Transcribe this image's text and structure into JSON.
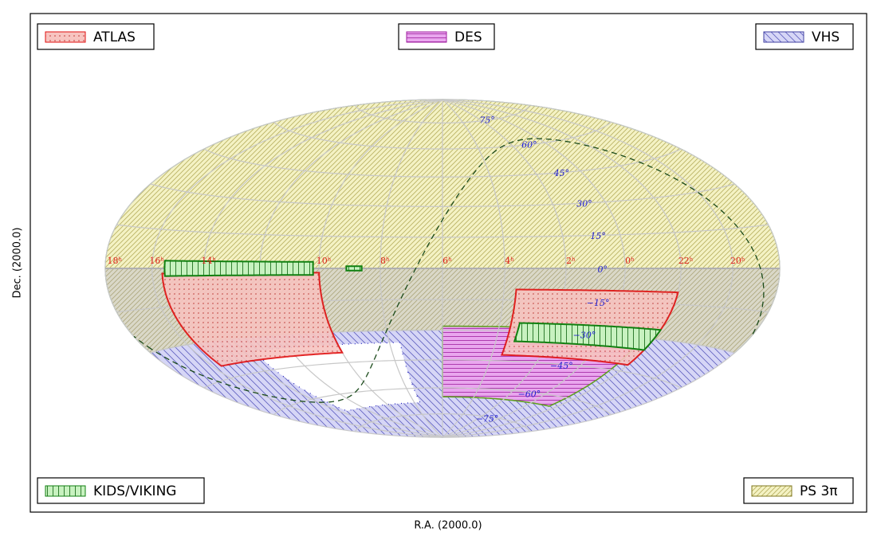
{
  "legend": [
    "ATLAS",
    "DES",
    "VHS",
    "KIDS/VIKING",
    "PS 3π"
  ],
  "x_label": "R.A. (2000.0)",
  "y_label": "Dec. (2000.0)",
  "ra_labels": [
    "18ʰ",
    "16ʰ",
    "14ʰ",
    "10ʰ",
    "8ʰ",
    "6ʰ",
    "4ʰ",
    "2ʰ",
    "0ʰ",
    "22ʰ",
    "20ʰ"
  ],
  "dec_labels": [
    "75°",
    "60°",
    "45°",
    "30°",
    "15°",
    "0°",
    "−15°",
    "−30°",
    "−45°",
    "−60°",
    "−75°"
  ]
}
